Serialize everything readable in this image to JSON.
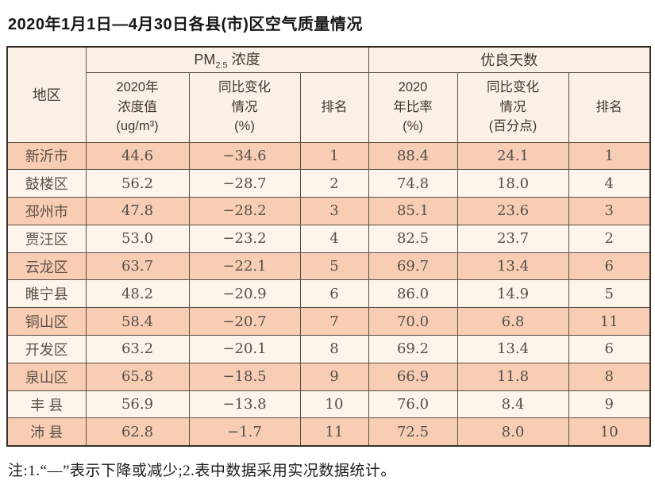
{
  "title": "2020年1月1日—4月30日各县(市)区空气质量情况",
  "table": {
    "region_header": "地区",
    "group_pm": {
      "prefix": "PM",
      "sub": "2.5",
      "suffix": " 浓度"
    },
    "group_good": "优良天数",
    "sub": {
      "pm_value": [
        "2020年",
        "浓度值",
        "(ug/m³)"
      ],
      "pm_change": [
        "同比变化",
        "情况",
        "(%)"
      ],
      "pm_rank": "排名",
      "good_rate": [
        "2020",
        "年比率",
        "(%)"
      ],
      "good_change": [
        "同比变化",
        "情况",
        "(百分点)"
      ],
      "good_rank": "排名"
    },
    "rows": [
      [
        "新沂市",
        "44.6",
        "−34.6",
        "1",
        "88.4",
        "24.1",
        "1"
      ],
      [
        "鼓楼区",
        "56.2",
        "−28.7",
        "2",
        "74.8",
        "18.0",
        "4"
      ],
      [
        "邳州市",
        "47.8",
        "−28.2",
        "3",
        "85.1",
        "23.6",
        "3"
      ],
      [
        "贾汪区",
        "53.0",
        "−23.2",
        "4",
        "82.5",
        "23.7",
        "2"
      ],
      [
        "云龙区",
        "63.7",
        "−22.1",
        "5",
        "69.7",
        "13.4",
        "6"
      ],
      [
        "睢宁县",
        "48.2",
        "−20.9",
        "6",
        "86.0",
        "14.9",
        "5"
      ],
      [
        "铜山区",
        "58.4",
        "−20.7",
        "7",
        "70.0",
        "6.8",
        "11"
      ],
      [
        "开发区",
        "63.2",
        "−20.1",
        "8",
        "69.2",
        "13.4",
        "6"
      ],
      [
        "泉山区",
        "65.8",
        "−18.5",
        "9",
        "66.9",
        "11.8",
        "8"
      ],
      [
        "丰 县",
        "56.9",
        "−13.8",
        "10",
        "76.0",
        "8.4",
        "9"
      ],
      [
        "沛 县",
        "62.8",
        "−1.7",
        "11",
        "72.5",
        "8.0",
        "10"
      ]
    ]
  },
  "note": "注:1.“—”表示下降或减少;2.表中数据采用实况数据统计。",
  "colors": {
    "row_odd": "#f8cdb4",
    "row_even": "#fdf4ec",
    "header_bg": "#fbf0e5",
    "border_outer": "#38302a",
    "border_inner": "#5a4f46"
  }
}
